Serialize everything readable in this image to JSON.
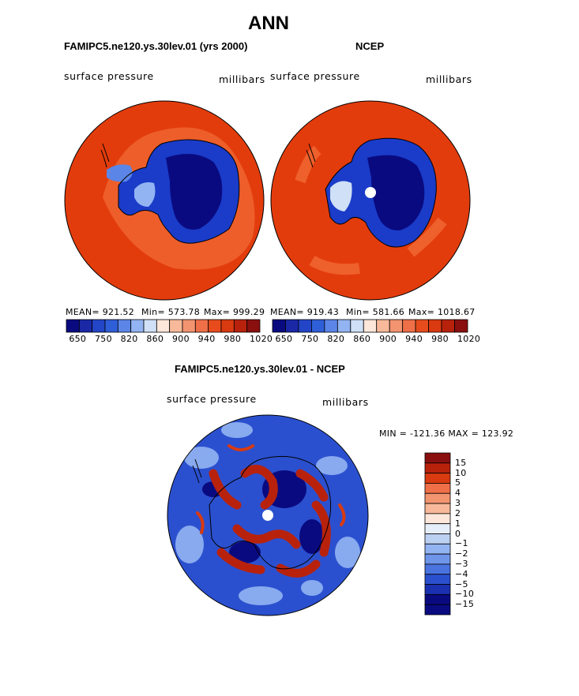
{
  "page": {
    "title": "ANN",
    "left_model_label": "FAMIPC5.ne120.ys.30lev.01 (yrs 2000)",
    "right_model_label": "NCEP",
    "diff_label": "FAMIPC5.ne120.ys.30lev.01 - NCEP"
  },
  "left_panel": {
    "variable": "surface pressure",
    "units": "millibars",
    "stats": {
      "mean": "MEAN= 921.52",
      "min": "Min= 573.78",
      "max": "Max= 999.29"
    },
    "colorbar_ticks": [
      "650",
      "750",
      "820",
      "860",
      "900",
      "940",
      "980",
      "1020"
    ]
  },
  "right_panel": {
    "variable": "surface pressure",
    "units": "millibars",
    "stats": {
      "mean": "MEAN= 919.43",
      "min": "Min= 581.66",
      "max": "Max= 1018.67"
    },
    "colorbar_ticks": [
      "650",
      "750",
      "820",
      "860",
      "900",
      "940",
      "980",
      "1020"
    ]
  },
  "diff_panel": {
    "variable": "surface pressure",
    "units": "millibars",
    "minmax": "MIN = -121.36 MAX = 123.92",
    "colorbar_ticks": [
      "15",
      "10",
      "5",
      "4",
      "3",
      "2",
      "1",
      "0",
      "−1",
      "−2",
      "−3",
      "−4",
      "−5",
      "−10",
      "−15"
    ]
  },
  "colors": {
    "seq_palette": [
      "#0a0a80",
      "#1a28a6",
      "#2345c8",
      "#2f5fd8",
      "#5b86e8",
      "#93b4f2",
      "#cfe0f7",
      "#fde6da",
      "#f8b99a",
      "#f39470",
      "#ef6f48",
      "#e84c1c",
      "#d93a10",
      "#b8220c",
      "#8a0f0f"
    ],
    "div_palette": [
      "#8a0f0f",
      "#b8220c",
      "#d93a10",
      "#ef6f48",
      "#f39470",
      "#f8b99a",
      "#fde6da",
      "#e6eefa",
      "#bcd0f2",
      "#93b4f2",
      "#6f95ea",
      "#4a73e0",
      "#2b50cf",
      "#1a30b0",
      "#0a0a80"
    ],
    "field_orange": "#e33c0c",
    "field_light_orange": "#ee6430",
    "field_deep_blue": "#0a0a80",
    "field_mid_blue": "#1a3cc8"
  }
}
